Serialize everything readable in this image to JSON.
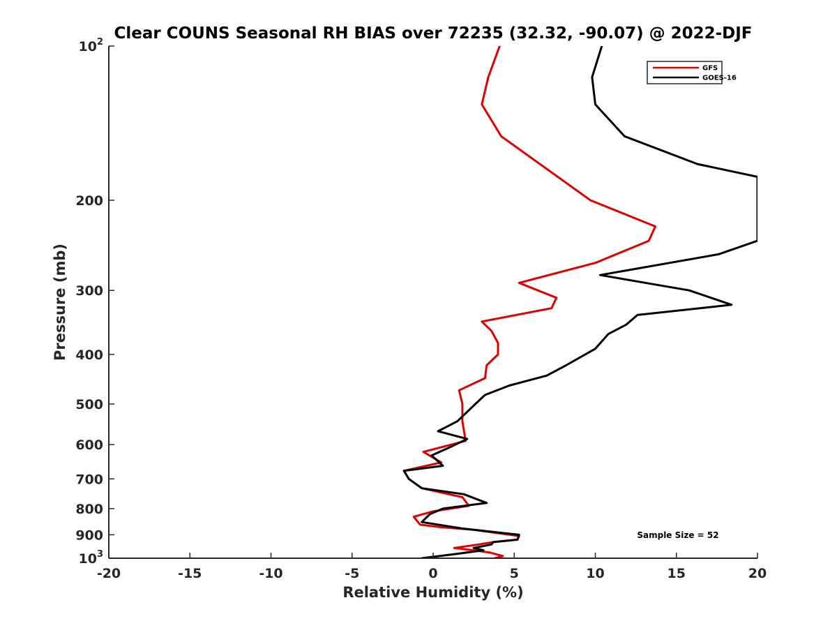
{
  "chart_data": {
    "type": "line",
    "title": "Clear COUNS Seasonal RH BIAS over 72235 (32.32, -90.07) @ 2022-DJF",
    "xlabel": "Relative Humidity (%)",
    "ylabel": "Pressure (mb)",
    "xlim": [
      -20,
      20
    ],
    "ylim": [
      100,
      1000
    ],
    "yscale": "log",
    "y_reversed": true,
    "x_ticks": [
      -20,
      -15,
      -10,
      -5,
      0,
      5,
      10,
      15,
      20
    ],
    "x_tick_labels": [
      "-20",
      "-15",
      "-10",
      "-5",
      "0",
      "5",
      "10",
      "15",
      "20"
    ],
    "y_ticks": [
      100,
      200,
      300,
      400,
      500,
      600,
      700,
      800,
      900,
      1000
    ],
    "y_tick_labels": [
      {
        "base": "10",
        "sup": "2"
      },
      {
        "base": "200",
        "sup": ""
      },
      {
        "base": "300",
        "sup": ""
      },
      {
        "base": "400",
        "sup": ""
      },
      {
        "base": "500",
        "sup": ""
      },
      {
        "base": "600",
        "sup": ""
      },
      {
        "base": "700",
        "sup": ""
      },
      {
        "base": "800",
        "sup": ""
      },
      {
        "base": "900",
        "sup": ""
      },
      {
        "base": "10",
        "sup": "3"
      }
    ],
    "grid": false,
    "legend_position": "top-right",
    "annotation": "Sample Size = 52",
    "series": [
      {
        "name": "GFS",
        "color": "#e00000",
        "points": [
          [
            4.1,
            100
          ],
          [
            3.4,
            115
          ],
          [
            3.0,
            130
          ],
          [
            4.2,
            150
          ],
          [
            9.7,
            200
          ],
          [
            13.7,
            225
          ],
          [
            13.3,
            240
          ],
          [
            10.0,
            265
          ],
          [
            5.3,
            290
          ],
          [
            7.6,
            310
          ],
          [
            7.3,
            325
          ],
          [
            3.0,
            345
          ],
          [
            3.6,
            360
          ],
          [
            4.0,
            380
          ],
          [
            4.0,
            400
          ],
          [
            3.3,
            420
          ],
          [
            3.2,
            445
          ],
          [
            1.6,
            470
          ],
          [
            1.8,
            500
          ],
          [
            1.8,
            540
          ],
          [
            2.0,
            590
          ],
          [
            -0.6,
            620
          ],
          [
            0.5,
            650
          ],
          [
            -1.8,
            675
          ],
          [
            -1.5,
            700
          ],
          [
            -0.7,
            730
          ],
          [
            1.8,
            760
          ],
          [
            2.2,
            790
          ],
          [
            0.0,
            810
          ],
          [
            -1.2,
            830
          ],
          [
            -0.8,
            860
          ],
          [
            0.5,
            870
          ],
          [
            2.5,
            880
          ],
          [
            5.3,
            905
          ],
          [
            5.2,
            920
          ],
          [
            3.7,
            930
          ],
          [
            2.8,
            940
          ],
          [
            1.3,
            955
          ],
          [
            2.5,
            965
          ],
          [
            3.5,
            975
          ],
          [
            4.3,
            990
          ],
          [
            3.8,
            1000
          ]
        ]
      },
      {
        "name": "GOES-16",
        "color": "#000000",
        "points": [
          [
            10.4,
            100
          ],
          [
            9.8,
            115
          ],
          [
            10.0,
            130
          ],
          [
            11.8,
            150
          ],
          [
            16.3,
            170
          ],
          [
            20.0,
            180
          ],
          [
            20.0,
            240
          ],
          [
            17.6,
            255
          ],
          [
            10.3,
            280
          ],
          [
            15.8,
            300
          ],
          [
            18.4,
            320
          ],
          [
            12.6,
            335
          ],
          [
            11.9,
            350
          ],
          [
            10.8,
            365
          ],
          [
            10.0,
            390
          ],
          [
            8.2,
            420
          ],
          [
            7.0,
            440
          ],
          [
            4.7,
            460
          ],
          [
            3.2,
            480
          ],
          [
            2.6,
            500
          ],
          [
            1.5,
            540
          ],
          [
            0.3,
            565
          ],
          [
            2.1,
            585
          ],
          [
            0.9,
            610
          ],
          [
            -0.1,
            630
          ],
          [
            0.6,
            660
          ],
          [
            -1.8,
            675
          ],
          [
            -1.5,
            700
          ],
          [
            -0.7,
            730
          ],
          [
            1.9,
            750
          ],
          [
            3.3,
            780
          ],
          [
            0.6,
            800
          ],
          [
            -0.2,
            820
          ],
          [
            -0.7,
            850
          ],
          [
            1.8,
            875
          ],
          [
            5.3,
            900
          ],
          [
            5.2,
            920
          ],
          [
            3.7,
            930
          ],
          [
            3.6,
            940
          ],
          [
            2.5,
            955
          ],
          [
            3.1,
            965
          ],
          [
            1.5,
            980
          ],
          [
            -0.7,
            1000
          ]
        ]
      }
    ]
  }
}
